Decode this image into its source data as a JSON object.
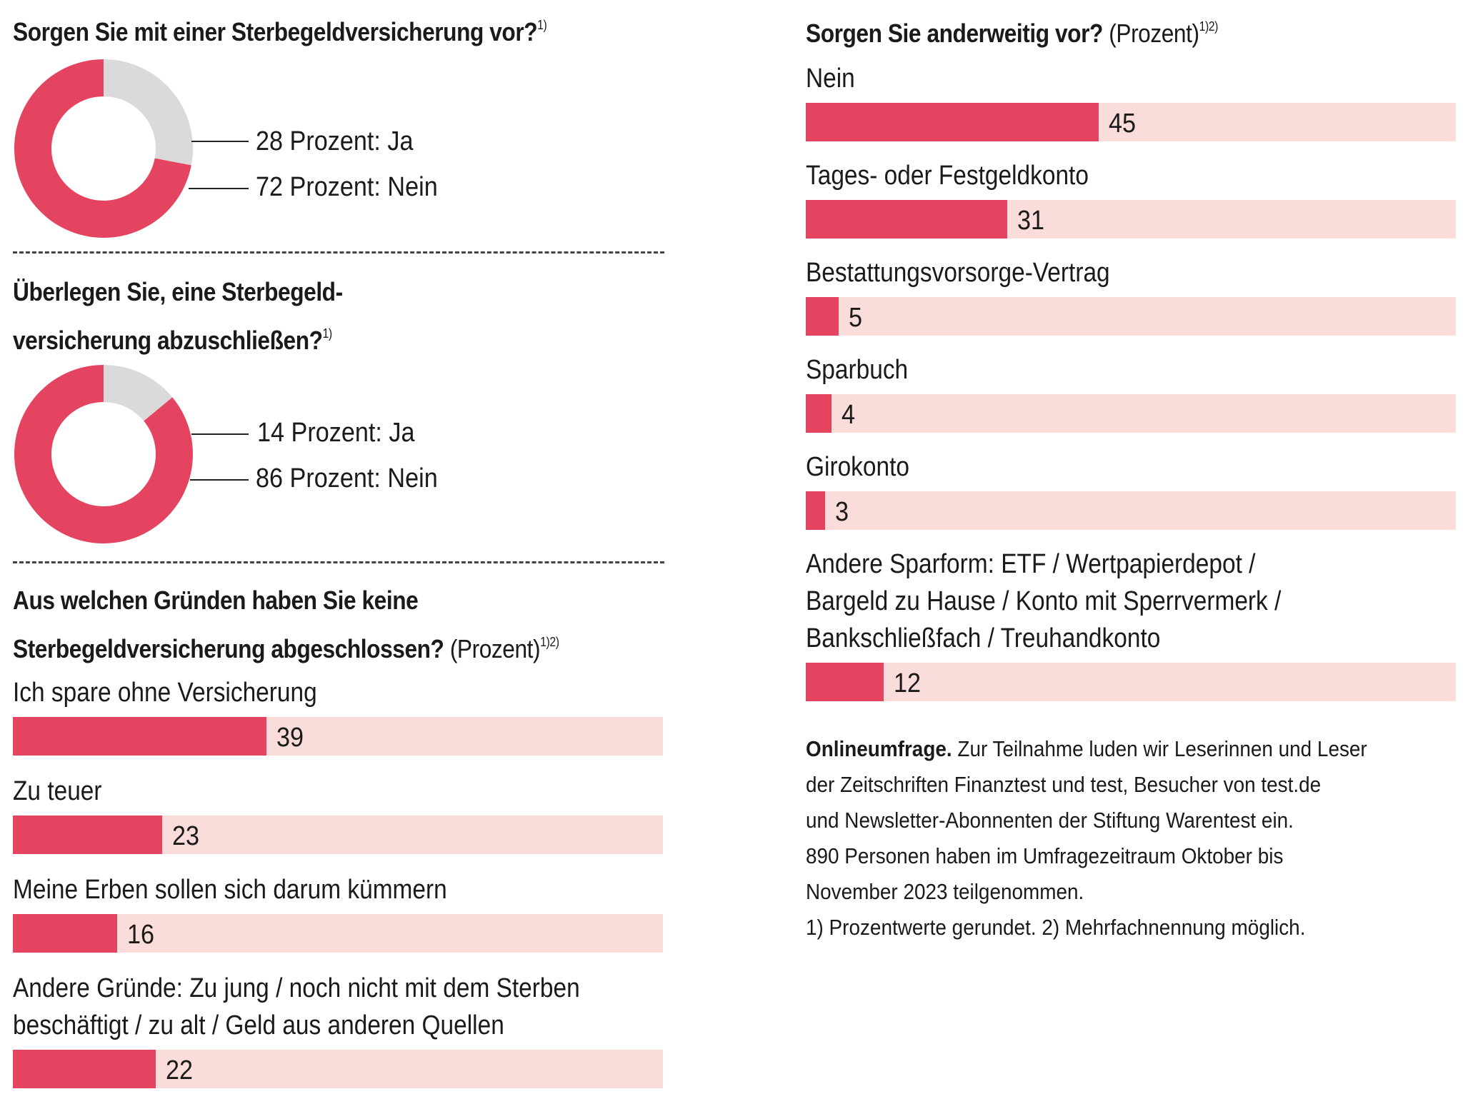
{
  "colors": {
    "primary": "#e4445f",
    "track": "#fadcda",
    "neutral": "#dadada"
  },
  "q1": {
    "title": "Sorgen Sie mit einer Sterbegeldversicherung vor?",
    "footnote": "1)",
    "label_yes": "28 Prozent: Ja",
    "label_no": "72 Prozent: Nein"
  },
  "q2": {
    "title_line1": "Überlegen Sie, eine Sterbegeld-",
    "title_line2": "versicherung abzuschließen?",
    "footnote": "1)",
    "label_yes": "14 Prozent: Ja",
    "label_no": "86 Prozent: Nein"
  },
  "q3": {
    "title_line1": "Aus welchen Gründen haben Sie keine",
    "title_line2_bold": "Sterbegeldversicherung abgeschlossen?",
    "title_line2_plain": "(Prozent)",
    "footnote": "1)2)"
  },
  "q4": {
    "title_bold": "Sorgen Sie anderweitig vor?",
    "title_plain": "(Prozent)",
    "footnote": "1)2)"
  },
  "note": {
    "bold": "Onlineumfrage.",
    "line1": "Zur Teilnahme luden wir Leserinnen und Leser",
    "line2": "der Zeitschriften Finanztest und test, Besucher von test.de",
    "line3": "und Newsletter-Abonnenten der Stiftung Warentest ein.",
    "line4": "890 Personen haben im Umfragezeitraum Oktober bis",
    "line5": "November 2023 teilgenommen.",
    "line6": "1) Prozentwerte gerundet. 2) Mehrfachnennung möglich."
  },
  "chart_data": [
    {
      "type": "pie",
      "title": "Sorgen Sie mit einer Sterbegeldversicherung vor?",
      "categories": [
        "Ja",
        "Nein"
      ],
      "values": [
        28,
        72
      ],
      "colors": [
        "#dadada",
        "#e4445f"
      ]
    },
    {
      "type": "pie",
      "title": "Überlegen Sie, eine Sterbegeldversicherung abzuschließen?",
      "categories": [
        "Ja",
        "Nein"
      ],
      "values": [
        14,
        86
      ],
      "colors": [
        "#dadada",
        "#e4445f"
      ]
    },
    {
      "type": "bar",
      "title": "Aus welchen Gründen haben Sie keine Sterbegeldversicherung abgeschlossen? (Prozent)",
      "categories": [
        "Ich spare ohne Versicherung",
        "Zu teuer",
        "Meine Erben sollen sich darum kümmern",
        "Andere Gründe: Zu jung / noch nicht mit dem Sterben beschäftigt / zu alt / Geld aus anderen Quellen"
      ],
      "values": [
        39,
        23,
        16,
        22
      ],
      "ylim": [
        0,
        100
      ]
    },
    {
      "type": "bar",
      "title": "Sorgen Sie anderweitig vor? (Prozent)",
      "categories": [
        "Nein",
        "Tages- oder Festgeldkonto",
        "Bestattungsvorsorge-Vertrag",
        "Sparbuch",
        "Girokonto",
        "Andere Sparform: ETF / Wertpapierdepot / Bargeld zu Hause / Konto mit Sperrvermerk / Bankschließfach / Treuhandkonto"
      ],
      "values": [
        45,
        31,
        5,
        4,
        3,
        12
      ],
      "ylim": [
        0,
        100
      ]
    }
  ],
  "bar_label_lines": {
    "q3": [
      [
        "Ich spare ohne Versicherung"
      ],
      [
        "Zu teuer"
      ],
      [
        "Meine Erben sollen sich darum kümmern"
      ],
      [
        "Andere Gründe: Zu jung / noch nicht mit dem Sterben",
        "beschäftigt / zu alt / Geld aus anderen Quellen"
      ]
    ],
    "q4": [
      [
        "Nein"
      ],
      [
        "Tages- oder Festgeldkonto"
      ],
      [
        "Bestattungsvorsorge-Vertrag"
      ],
      [
        "Sparbuch"
      ],
      [
        "Girokonto"
      ],
      [
        "Andere Sparform: ETF / Wertpapierdepot /",
        "Bargeld zu Hause / Konto mit Sperrvermerk /",
        "Bankschließfach / Treuhandkonto"
      ]
    ]
  }
}
